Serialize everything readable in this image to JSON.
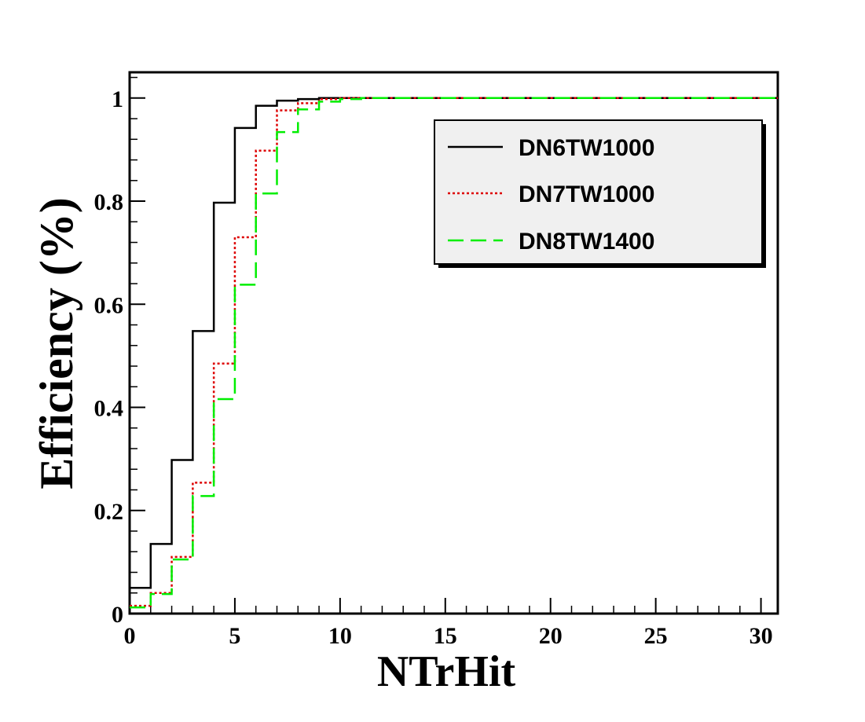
{
  "chart_data": {
    "type": "line",
    "style": "step-histogram",
    "xlabel": "NTrHit",
    "ylabel": "Efficiency (%)",
    "xlim": [
      0,
      30.8
    ],
    "ylim": [
      0,
      1.05
    ],
    "x_ticks": [
      0,
      5,
      10,
      15,
      20,
      25,
      30
    ],
    "y_ticks": [
      0,
      0.2,
      0.4,
      0.6,
      0.8,
      1
    ],
    "y_tick_labels": [
      "0",
      "0.2",
      "0.4",
      "0.6",
      "0.8",
      "1"
    ],
    "grid": false,
    "legend_position": "top-right",
    "bin_edges": [
      0,
      1,
      2,
      3,
      4,
      5,
      6,
      7,
      8,
      9,
      10,
      11,
      12,
      13,
      14,
      15,
      16,
      17,
      18,
      19,
      20,
      21,
      22,
      23,
      24,
      25,
      26,
      27,
      28,
      29,
      30,
      31
    ],
    "series": [
      {
        "name": "DN6TW1000",
        "color": "#000000",
        "dash": "solid",
        "values": [
          0.05,
          0.135,
          0.298,
          0.548,
          0.797,
          0.942,
          0.985,
          0.995,
          0.998,
          1.0,
          1.0,
          1.0,
          1.0,
          1.0,
          1.0,
          1.0,
          1.0,
          1.0,
          1.0,
          1.0,
          1.0,
          1.0,
          1.0,
          1.0,
          1.0,
          1.0,
          1.0,
          1.0,
          1.0,
          1.0,
          1.0
        ]
      },
      {
        "name": "DN7TW1000",
        "color": "#dd0000",
        "dash": "dotted",
        "values": [
          0.015,
          0.04,
          0.11,
          0.254,
          0.485,
          0.73,
          0.898,
          0.976,
          0.99,
          0.998,
          1.0,
          1.0,
          1.0,
          1.0,
          1.0,
          1.0,
          1.0,
          1.0,
          1.0,
          1.0,
          1.0,
          1.0,
          1.0,
          1.0,
          1.0,
          1.0,
          1.0,
          1.0,
          1.0,
          1.0,
          1.0
        ]
      },
      {
        "name": "DN8TW1400",
        "color": "#00ee00",
        "dash": "dashed",
        "values": [
          0.012,
          0.038,
          0.105,
          0.228,
          0.416,
          0.638,
          0.815,
          0.934,
          0.978,
          0.993,
          0.998,
          1.0,
          1.0,
          1.0,
          1.0,
          1.0,
          1.0,
          1.0,
          1.0,
          1.0,
          1.0,
          1.0,
          1.0,
          1.0,
          1.0,
          1.0,
          1.0,
          1.0,
          1.0,
          1.0,
          1.0
        ]
      }
    ]
  }
}
